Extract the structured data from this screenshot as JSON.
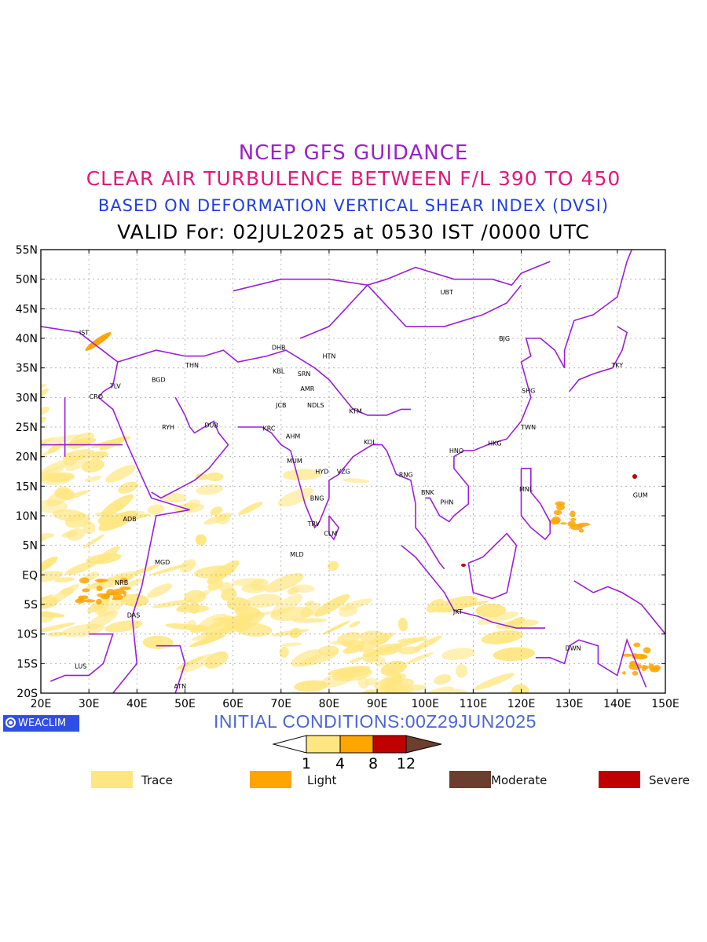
{
  "titles": {
    "line1": "NCEP GFS GUIDANCE",
    "line2": "CLEAR AIR TURBULENCE BETWEEN F/L 390 TO 450",
    "line3": "BASED ON DEFORMATION VERTICAL SHEAR INDEX (DVSI)",
    "line4": "VALID For: 02JUL2025 at 0530 IST /0000 UTC"
  },
  "initial_conditions": "INITIAL CONDITIONS:00Z29JUN2025",
  "brand": "WEACLIM",
  "map": {
    "lon_range": [
      20,
      150
    ],
    "lat_range": [
      -20,
      55
    ],
    "lon_ticks": [
      "20E",
      "30E",
      "40E",
      "50E",
      "60E",
      "70E",
      "80E",
      "90E",
      "100E",
      "110E",
      "120E",
      "130E",
      "140E",
      "150E"
    ],
    "lat_ticks": [
      "20S",
      "15S",
      "10S",
      "5S",
      "EQ",
      "5N",
      "10N",
      "15N",
      "20N",
      "25N",
      "30N",
      "35N",
      "40N",
      "45N",
      "50N",
      "55N"
    ],
    "stations": [
      {
        "code": "UBT",
        "lon": 104.5,
        "lat": 47.8
      },
      {
        "code": "IST",
        "lon": 29,
        "lat": 41
      },
      {
        "code": "BJG",
        "lon": 116.5,
        "lat": 40
      },
      {
        "code": "DHB",
        "lon": 69.5,
        "lat": 38.5
      },
      {
        "code": "HTN",
        "lon": 80,
        "lat": 37
      },
      {
        "code": "THN",
        "lon": 51.5,
        "lat": 35.5
      },
      {
        "code": "KBL",
        "lon": 69.5,
        "lat": 34.5
      },
      {
        "code": "SRN",
        "lon": 74.8,
        "lat": 34
      },
      {
        "code": "TKY",
        "lon": 140,
        "lat": 35.5
      },
      {
        "code": "BGD",
        "lon": 44.5,
        "lat": 33
      },
      {
        "code": "TLV",
        "lon": 35.5,
        "lat": 32
      },
      {
        "code": "AMR",
        "lon": 75.5,
        "lat": 31.5
      },
      {
        "code": "SHG",
        "lon": 121.5,
        "lat": 31.2
      },
      {
        "code": "CRO",
        "lon": 31.5,
        "lat": 30.2
      },
      {
        "code": "JCB",
        "lon": 70,
        "lat": 28.7
      },
      {
        "code": "NDLS",
        "lon": 77.2,
        "lat": 28.7
      },
      {
        "code": "KTM",
        "lon": 85.5,
        "lat": 27.7
      },
      {
        "code": "RYH",
        "lon": 46.5,
        "lat": 25
      },
      {
        "code": "DUB",
        "lon": 55.5,
        "lat": 25.3
      },
      {
        "code": "TWN",
        "lon": 121.5,
        "lat": 25
      },
      {
        "code": "KRC",
        "lon": 67.5,
        "lat": 24.8
      },
      {
        "code": "AHM",
        "lon": 72.5,
        "lat": 23.5
      },
      {
        "code": "KOL",
        "lon": 88.5,
        "lat": 22.5
      },
      {
        "code": "HKG",
        "lon": 114.5,
        "lat": 22.3
      },
      {
        "code": "HNO",
        "lon": 106.5,
        "lat": 21
      },
      {
        "code": "MUM",
        "lon": 72.8,
        "lat": 19.3
      },
      {
        "code": "HYD",
        "lon": 78.5,
        "lat": 17.5
      },
      {
        "code": "VZG",
        "lon": 83,
        "lat": 17.5
      },
      {
        "code": "RNG",
        "lon": 96,
        "lat": 17
      },
      {
        "code": "MNL",
        "lon": 121,
        "lat": 14.5
      },
      {
        "code": "GUM",
        "lon": 144.8,
        "lat": 13.5
      },
      {
        "code": "BNK",
        "lon": 100.5,
        "lat": 14
      },
      {
        "code": "BNG",
        "lon": 77.5,
        "lat": 13
      },
      {
        "code": "PHN",
        "lon": 104.5,
        "lat": 12.3
      },
      {
        "code": "ADB",
        "lon": 38.5,
        "lat": 9.5
      },
      {
        "code": "TRV",
        "lon": 76.8,
        "lat": 8.7
      },
      {
        "code": "CLM",
        "lon": 80.3,
        "lat": 7
      },
      {
        "code": "MLD",
        "lon": 73.3,
        "lat": 3.5
      },
      {
        "code": "MGD",
        "lon": 45.3,
        "lat": 2.2
      },
      {
        "code": "NRB",
        "lon": 36.8,
        "lat": -1.3
      },
      {
        "code": "JKT",
        "lon": 106.8,
        "lat": -6.2
      },
      {
        "code": "DAS",
        "lon": 39.3,
        "lat": -6.8
      },
      {
        "code": "DWN",
        "lon": 130.8,
        "lat": -12.4
      },
      {
        "code": "LUS",
        "lon": 28.3,
        "lat": -15.4
      },
      {
        "code": "ATN",
        "lon": 49,
        "lat": -18.8
      }
    ]
  },
  "colorbar": {
    "ticks": [
      "1",
      "4",
      "8",
      "12"
    ],
    "colors": [
      "#ffe680",
      "#ffa500",
      "#c00000",
      "#6b3e2e"
    ]
  },
  "legend": [
    {
      "label": "Trace",
      "color": "#ffe680"
    },
    {
      "label": "Light",
      "color": "#ffa500"
    },
    {
      "label": "Moderate",
      "color": "#6b3e2e"
    },
    {
      "label": "Severe",
      "color": "#c00000"
    }
  ],
  "colors": {
    "boundary": "#9a1fd8",
    "trace": "#ffe680",
    "light": "#ffa500",
    "moderate": "#6b3e2e",
    "severe": "#c00000"
  }
}
